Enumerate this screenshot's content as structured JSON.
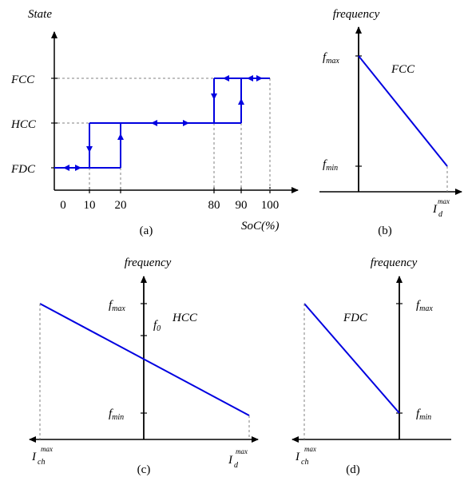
{
  "colors": {
    "axis": "#000000",
    "curve": "#0000e0",
    "guide": "#808080"
  },
  "panel_a": {
    "y_axis_label": "State",
    "states": [
      "FCC",
      "HCC",
      "FDC"
    ],
    "x_ticks": [
      "0",
      "10",
      "20",
      "80",
      "90",
      "100"
    ],
    "x_axis_label": "SoC(%)",
    "caption": "(a)"
  },
  "panel_b": {
    "y_axis_label": "frequency",
    "fmax": "f",
    "fmax_sub": "max",
    "fmin": "f",
    "fmin_sub": "min",
    "mode_label": "FCC",
    "x_end": "I",
    "x_end_sub": "d",
    "x_end_sup": "max",
    "caption": "(b)"
  },
  "panel_c": {
    "y_axis_label": "frequency",
    "fmax": "f",
    "fmax_sub": "max",
    "f0": "f",
    "f0_sub": "0",
    "fmin": "f",
    "fmin_sub": "min",
    "mode_label": "HCC",
    "x_left": "I",
    "x_left_sub": "ch",
    "x_left_sup": "max",
    "x_right": "I",
    "x_right_sub": "d",
    "x_right_sup": "max",
    "caption": "(c)"
  },
  "panel_d": {
    "y_axis_label": "frequency",
    "fmax": "f",
    "fmax_sub": "max",
    "fmin": "f",
    "fmin_sub": "min",
    "mode_label": "FDC",
    "x_left": "I",
    "x_left_sub": "ch",
    "x_left_sup": "max",
    "caption": "(d)"
  }
}
